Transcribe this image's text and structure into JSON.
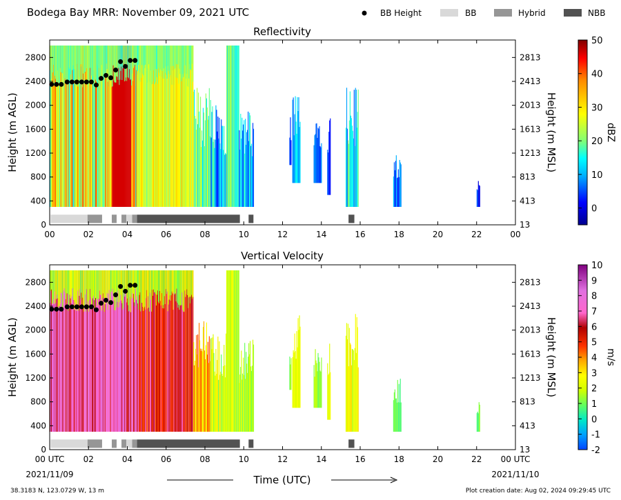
{
  "header": {
    "title": "Bodega Bay MRR:  November 09, 2021 UTC",
    "legend": [
      {
        "label": "BB Height",
        "kind": "dot",
        "color": "#000000"
      },
      {
        "label": "BB",
        "kind": "box",
        "color": "#d9d9d9"
      },
      {
        "label": "Hybrid",
        "kind": "box",
        "color": "#969696"
      },
      {
        "label": "NBB",
        "kind": "box",
        "color": "#525252"
      }
    ]
  },
  "axes": {
    "ylabel_left": "Height (m AGL)",
    "ylabel_right": "Height (m MSL)",
    "yticks_left": [
      0,
      400,
      800,
      1200,
      1600,
      2000,
      2400,
      2800
    ],
    "yticks_right": [
      13,
      413,
      813,
      1213,
      1613,
      2013,
      2413,
      2813
    ],
    "xticks_top": [
      "00",
      "02",
      "04",
      "06",
      "08",
      "10",
      "12",
      "14",
      "16",
      "18",
      "20",
      "22",
      "00"
    ],
    "xticks_bottom": [
      "00 UTC",
      "02",
      "04",
      "06",
      "08",
      "10",
      "12",
      "14",
      "16",
      "18",
      "20",
      "22",
      "00 UTC"
    ],
    "date_start": "2021/11/09",
    "date_end": "2021/11/10",
    "xlabel": "Time (UTC)"
  },
  "footer": {
    "location": "38.3183 N, 123.0729 W, 13 m",
    "created": "Plot creation date: Aug 02, 2024 09:29:45 UTC"
  },
  "chart_data": [
    {
      "type": "heatmap",
      "title": "Reflectivity",
      "colorbar_label": "dBZ",
      "colorbar_range": [
        -5,
        50
      ],
      "colorbar_ticks": [
        0,
        10,
        20,
        30,
        40,
        50
      ],
      "xlim_hours": [
        0,
        24
      ],
      "ylim_m_agl": [
        0,
        3000
      ],
      "bb_height_points": [
        {
          "hour": 0.1,
          "m_agl": 2350
        },
        {
          "hour": 0.35,
          "m_agl": 2350
        },
        {
          "hour": 0.6,
          "m_agl": 2350
        },
        {
          "hour": 0.9,
          "m_agl": 2390
        },
        {
          "hour": 1.15,
          "m_agl": 2390
        },
        {
          "hour": 1.4,
          "m_agl": 2390
        },
        {
          "hour": 1.65,
          "m_agl": 2390
        },
        {
          "hour": 1.9,
          "m_agl": 2390
        },
        {
          "hour": 2.15,
          "m_agl": 2390
        },
        {
          "hour": 2.4,
          "m_agl": 2340
        },
        {
          "hour": 2.65,
          "m_agl": 2450
        },
        {
          "hour": 2.9,
          "m_agl": 2500
        },
        {
          "hour": 3.15,
          "m_agl": 2460
        },
        {
          "hour": 3.4,
          "m_agl": 2590
        },
        {
          "hour": 3.65,
          "m_agl": 2730
        },
        {
          "hour": 3.9,
          "m_agl": 2650
        },
        {
          "hour": 4.15,
          "m_agl": 2750
        },
        {
          "hour": 4.4,
          "m_agl": 2750
        }
      ],
      "bb_type_segments": [
        {
          "start": 0.05,
          "end": 1.95,
          "type": "BB"
        },
        {
          "start": 1.95,
          "end": 2.7,
          "type": "Hybrid"
        },
        {
          "start": 3.2,
          "end": 3.45,
          "type": "Hybrid"
        },
        {
          "start": 3.7,
          "end": 3.95,
          "type": "Hybrid"
        },
        {
          "start": 3.95,
          "end": 4.25,
          "type": "BB"
        },
        {
          "start": 4.25,
          "end": 4.5,
          "type": "Hybrid"
        },
        {
          "start": 4.5,
          "end": 9.8,
          "type": "NBB"
        },
        {
          "start": 10.25,
          "end": 10.5,
          "type": "NBB"
        },
        {
          "start": 15.4,
          "end": 15.7,
          "type": "NBB"
        }
      ]
    },
    {
      "type": "heatmap",
      "title": "Vertical Velocity",
      "colorbar_label": "m/s",
      "colorbar_range": [
        -2,
        10
      ],
      "colorbar_ticks": [
        -2,
        -1,
        0,
        1,
        2,
        3,
        4,
        5,
        6,
        7,
        8,
        9,
        10
      ],
      "xlim_hours": [
        0,
        24
      ],
      "ylim_m_agl": [
        0,
        3000
      ],
      "bb_height_points": [
        {
          "hour": 0.1,
          "m_agl": 2350
        },
        {
          "hour": 0.35,
          "m_agl": 2350
        },
        {
          "hour": 0.6,
          "m_agl": 2350
        },
        {
          "hour": 0.9,
          "m_agl": 2390
        },
        {
          "hour": 1.15,
          "m_agl": 2390
        },
        {
          "hour": 1.4,
          "m_agl": 2390
        },
        {
          "hour": 1.65,
          "m_agl": 2390
        },
        {
          "hour": 1.9,
          "m_agl": 2390
        },
        {
          "hour": 2.15,
          "m_agl": 2390
        },
        {
          "hour": 2.4,
          "m_agl": 2340
        },
        {
          "hour": 2.65,
          "m_agl": 2450
        },
        {
          "hour": 2.9,
          "m_agl": 2500
        },
        {
          "hour": 3.15,
          "m_agl": 2460
        },
        {
          "hour": 3.4,
          "m_agl": 2590
        },
        {
          "hour": 3.65,
          "m_agl": 2730
        },
        {
          "hour": 3.9,
          "m_agl": 2650
        },
        {
          "hour": 4.15,
          "m_agl": 2750
        },
        {
          "hour": 4.4,
          "m_agl": 2750
        }
      ],
      "bb_type_segments": [
        {
          "start": 0.05,
          "end": 1.95,
          "type": "BB"
        },
        {
          "start": 1.95,
          "end": 2.7,
          "type": "Hybrid"
        },
        {
          "start": 3.2,
          "end": 3.45,
          "type": "Hybrid"
        },
        {
          "start": 3.7,
          "end": 3.95,
          "type": "Hybrid"
        },
        {
          "start": 3.95,
          "end": 4.25,
          "type": "BB"
        },
        {
          "start": 4.25,
          "end": 4.5,
          "type": "Hybrid"
        },
        {
          "start": 4.5,
          "end": 9.8,
          "type": "NBB"
        },
        {
          "start": 10.25,
          "end": 10.5,
          "type": "NBB"
        },
        {
          "start": 15.4,
          "end": 15.7,
          "type": "NBB"
        }
      ]
    }
  ],
  "echo_regions": [
    {
      "start": 0.0,
      "end": 4.6,
      "base": 300,
      "top": 3000,
      "refl": [
        12,
        42
      ],
      "vel": [
        5.5,
        8.5
      ]
    },
    {
      "start": 4.6,
      "end": 7.4,
      "base": 300,
      "top": 3000,
      "refl": [
        18,
        32
      ],
      "vel": [
        4.5,
        7.0
      ]
    },
    {
      "start": 7.4,
      "end": 8.3,
      "base": 300,
      "top": 2300,
      "refl": [
        8,
        26
      ],
      "vel": [
        2.0,
        5.0
      ]
    },
    {
      "start": 8.3,
      "end": 9.4,
      "base": 300,
      "top": 2000,
      "refl": [
        0,
        18
      ],
      "vel": [
        0.5,
        3.5
      ]
    },
    {
      "start": 9.1,
      "end": 9.75,
      "base": 300,
      "top": 3000,
      "refl": [
        10,
        22
      ],
      "vel": [
        1.0,
        3.0
      ]
    },
    {
      "start": 9.75,
      "end": 10.5,
      "base": 300,
      "top": 1900,
      "refl": [
        2,
        16
      ],
      "vel": [
        1.0,
        2.5
      ]
    },
    {
      "start": 12.5,
      "end": 12.9,
      "base": 700,
      "top": 2250,
      "refl": [
        4,
        14
      ],
      "vel": [
        2.0,
        3.0
      ]
    },
    {
      "start": 12.35,
      "end": 12.45,
      "base": 1000,
      "top": 1800,
      "refl": [
        0,
        4
      ],
      "vel": [
        1.0,
        2.0
      ]
    },
    {
      "start": 13.6,
      "end": 14.0,
      "base": 700,
      "top": 1700,
      "refl": [
        0,
        8
      ],
      "vel": [
        1.0,
        2.5
      ]
    },
    {
      "start": 14.3,
      "end": 14.45,
      "base": 500,
      "top": 1800,
      "refl": [
        0,
        6
      ],
      "vel": [
        2.0,
        3.0
      ]
    },
    {
      "start": 15.25,
      "end": 15.9,
      "base": 300,
      "top": 2300,
      "refl": [
        4,
        20
      ],
      "vel": [
        1.5,
        3.5
      ]
    },
    {
      "start": 17.7,
      "end": 18.1,
      "base": 300,
      "top": 1200,
      "refl": [
        0,
        12
      ],
      "vel": [
        0.5,
        1.5
      ]
    },
    {
      "start": 22.0,
      "end": 22.15,
      "base": 300,
      "top": 800,
      "refl": [
        -2,
        4
      ],
      "vel": [
        0.5,
        1.5
      ]
    }
  ]
}
